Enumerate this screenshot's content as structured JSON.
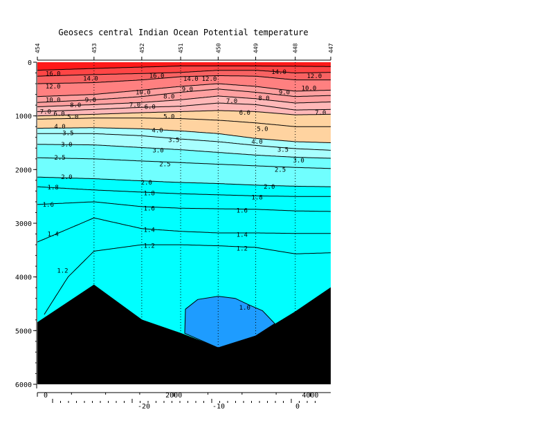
{
  "chart_data": {
    "type": "contour",
    "title": "Geosecs central Indian Ocean Potential temperature",
    "xlim": [
      0,
      4300
    ],
    "ylim": [
      0,
      6000
    ],
    "y_ticks": [
      "0",
      "1000",
      "2000",
      "3000",
      "4000",
      "5000",
      "6000"
    ],
    "x_ticks": [
      "0",
      "2000",
      "4000"
    ],
    "lat_ticks": [
      "-20",
      "-10",
      "0"
    ],
    "stations": [
      {
        "label": "454",
        "x": 0
      },
      {
        "label": "453",
        "x": 830
      },
      {
        "label": "452",
        "x": 1530
      },
      {
        "label": "451",
        "x": 2100
      },
      {
        "label": "450",
        "x": 2650
      },
      {
        "label": "449",
        "x": 3200
      },
      {
        "label": "448",
        "x": 3780
      },
      {
        "label": "447",
        "x": 4300
      }
    ],
    "colors": {
      "above_16": "#ff1a1a",
      "14_16": "#ff4545",
      "12_14": "#f86262",
      "10_12": "#ff8080",
      "8_10": "#ffa0a0",
      "6_8": "#ffb8b8",
      "4_6": "#ffd3a0",
      "3_4": "#a8ffff",
      "2_3": "#70ffff",
      "1_2": "#00ffff",
      "below_1": "#1e9cff",
      "bottom": "#000000"
    },
    "bathymetry": [
      {
        "x": 0,
        "depth": 4850
      },
      {
        "x": 830,
        "depth": 4150
      },
      {
        "x": 1530,
        "depth": 4800
      },
      {
        "x": 2100,
        "depth": 5050
      },
      {
        "x": 2650,
        "depth": 5320
      },
      {
        "x": 3200,
        "depth": 5100
      },
      {
        "x": 3780,
        "depth": 4650
      },
      {
        "x": 4300,
        "depth": 4200
      }
    ],
    "contours": [
      {
        "level": 16.0,
        "points": [
          [
            0,
            150
          ],
          [
            1000,
            110
          ],
          [
            2100,
            70
          ],
          [
            3100,
            70
          ],
          [
            4300,
            80
          ]
        ]
      },
      {
        "level": 14.0,
        "points": [
          [
            0,
            260
          ],
          [
            830,
            230
          ],
          [
            1530,
            210
          ],
          [
            2100,
            190
          ],
          [
            2650,
            150
          ],
          [
            3200,
            150
          ],
          [
            3780,
            200
          ],
          [
            4300,
            190
          ]
        ]
      },
      {
        "level": 12.0,
        "points": [
          [
            0,
            400
          ],
          [
            830,
            380
          ],
          [
            1530,
            330
          ],
          [
            2100,
            270
          ],
          [
            2650,
            250
          ],
          [
            3200,
            260
          ],
          [
            3780,
            330
          ],
          [
            4300,
            330
          ]
        ]
      },
      {
        "level": 10.0,
        "points": [
          [
            0,
            640
          ],
          [
            830,
            600
          ],
          [
            1530,
            520
          ],
          [
            2100,
            450
          ],
          [
            2650,
            400
          ],
          [
            3200,
            450
          ],
          [
            3780,
            540
          ],
          [
            4300,
            520
          ]
        ]
      },
      {
        "level": 9.0,
        "points": [
          [
            0,
            750
          ],
          [
            830,
            700
          ],
          [
            1530,
            640
          ],
          [
            2100,
            560
          ],
          [
            2650,
            500
          ],
          [
            3200,
            560
          ],
          [
            3780,
            640
          ],
          [
            4300,
            620
          ]
        ]
      },
      {
        "level": 8.0,
        "points": [
          [
            0,
            830
          ],
          [
            830,
            790
          ],
          [
            1530,
            750
          ],
          [
            2100,
            700
          ],
          [
            2650,
            630
          ],
          [
            3200,
            680
          ],
          [
            3780,
            760
          ],
          [
            4300,
            740
          ]
        ]
      },
      {
        "level": 7.0,
        "points": [
          [
            0,
            920
          ],
          [
            830,
            880
          ],
          [
            1530,
            840
          ],
          [
            2100,
            820
          ],
          [
            2650,
            760
          ],
          [
            3200,
            790
          ],
          [
            3780,
            890
          ],
          [
            4300,
            880
          ]
        ]
      },
      {
        "level": 6.0,
        "points": [
          [
            0,
            1000
          ],
          [
            830,
            970
          ],
          [
            1530,
            940
          ],
          [
            2100,
            920
          ],
          [
            2650,
            900
          ],
          [
            3200,
            920
          ],
          [
            3780,
            980
          ],
          [
            4300,
            970
          ]
        ]
      },
      {
        "level": 5.0,
        "points": [
          [
            0,
            1060
          ],
          [
            830,
            1040
          ],
          [
            1530,
            1040
          ],
          [
            2100,
            1050
          ],
          [
            2650,
            1080
          ],
          [
            3200,
            1130
          ],
          [
            3780,
            1200
          ],
          [
            4300,
            1200
          ]
        ]
      },
      {
        "level": 4.0,
        "points": [
          [
            0,
            1230
          ],
          [
            830,
            1220
          ],
          [
            1530,
            1240
          ],
          [
            2100,
            1280
          ],
          [
            2650,
            1330
          ],
          [
            3200,
            1420
          ],
          [
            3780,
            1480
          ],
          [
            4300,
            1500
          ]
        ]
      },
      {
        "level": 3.5,
        "points": [
          [
            0,
            1330
          ],
          [
            830,
            1330
          ],
          [
            1530,
            1370
          ],
          [
            2100,
            1430
          ],
          [
            2650,
            1480
          ],
          [
            3200,
            1550
          ],
          [
            3780,
            1610
          ],
          [
            4300,
            1640
          ]
        ]
      },
      {
        "level": 3.0,
        "points": [
          [
            0,
            1530
          ],
          [
            830,
            1540
          ],
          [
            1530,
            1590
          ],
          [
            2100,
            1630
          ],
          [
            2650,
            1680
          ],
          [
            3200,
            1730
          ],
          [
            3780,
            1770
          ],
          [
            4300,
            1790
          ]
        ]
      },
      {
        "level": 2.5,
        "points": [
          [
            0,
            1780
          ],
          [
            830,
            1800
          ],
          [
            1530,
            1840
          ],
          [
            2100,
            1870
          ],
          [
            2650,
            1900
          ],
          [
            3200,
            1930
          ],
          [
            3780,
            1960
          ],
          [
            4300,
            1980
          ]
        ]
      },
      {
        "level": 2.0,
        "points": [
          [
            0,
            2140
          ],
          [
            830,
            2170
          ],
          [
            1530,
            2210
          ],
          [
            2100,
            2240
          ],
          [
            2650,
            2260
          ],
          [
            3200,
            2290
          ],
          [
            3780,
            2310
          ],
          [
            4300,
            2320
          ]
        ]
      },
      {
        "level": 1.8,
        "points": [
          [
            0,
            2320
          ],
          [
            830,
            2380
          ],
          [
            1530,
            2420
          ],
          [
            2100,
            2450
          ],
          [
            2650,
            2470
          ],
          [
            3200,
            2490
          ],
          [
            3780,
            2500
          ],
          [
            4300,
            2500
          ]
        ]
      },
      {
        "level": 1.6,
        "points": [
          [
            0,
            2650
          ],
          [
            830,
            2600
          ],
          [
            1530,
            2690
          ],
          [
            2100,
            2720
          ],
          [
            2650,
            2730
          ],
          [
            3200,
            2740
          ],
          [
            3780,
            2770
          ],
          [
            4300,
            2780
          ]
        ]
      },
      {
        "level": 1.4,
        "points": [
          [
            0,
            3350
          ],
          [
            830,
            2900
          ],
          [
            1530,
            3100
          ],
          [
            2100,
            3150
          ],
          [
            2650,
            3180
          ],
          [
            3200,
            3180
          ],
          [
            3780,
            3190
          ],
          [
            4300,
            3190
          ]
        ]
      },
      {
        "level": 1.2,
        "points": [
          [
            100,
            4700
          ],
          [
            450,
            4000
          ],
          [
            830,
            3520
          ],
          [
            1530,
            3400
          ],
          [
            2100,
            3400
          ],
          [
            2650,
            3420
          ],
          [
            3200,
            3450
          ],
          [
            3780,
            3570
          ],
          [
            4300,
            3550
          ]
        ]
      }
    ],
    "contour_labels": [
      {
        "text": "16.0",
        "x": 230,
        "depth": 210
      },
      {
        "text": "14.0",
        "x": 780,
        "depth": 300
      },
      {
        "text": "16.0",
        "x": 1750,
        "depth": 250
      },
      {
        "text": "14.0",
        "x": 2250,
        "depth": 310
      },
      {
        "text": "12.0",
        "x": 2520,
        "depth": 310
      },
      {
        "text": "14.0",
        "x": 3540,
        "depth": 180
      },
      {
        "text": "12.0",
        "x": 4060,
        "depth": 260
      },
      {
        "text": "12.0",
        "x": 230,
        "depth": 450
      },
      {
        "text": "10.0",
        "x": 1550,
        "depth": 560
      },
      {
        "text": "9.0",
        "x": 2200,
        "depth": 500
      },
      {
        "text": "8.0",
        "x": 1930,
        "depth": 640
      },
      {
        "text": "10.0",
        "x": 3980,
        "depth": 480
      },
      {
        "text": "9.0",
        "x": 3620,
        "depth": 560
      },
      {
        "text": "10.0",
        "x": 230,
        "depth": 700
      },
      {
        "text": "9.0",
        "x": 780,
        "depth": 700
      },
      {
        "text": "8.0",
        "x": 560,
        "depth": 800
      },
      {
        "text": "7.0",
        "x": 1430,
        "depth": 790
      },
      {
        "text": "6.0",
        "x": 1650,
        "depth": 830
      },
      {
        "text": "8.0",
        "x": 3320,
        "depth": 670
      },
      {
        "text": "7.0",
        "x": 2850,
        "depth": 720
      },
      {
        "text": "7.0",
        "x": 120,
        "depth": 920
      },
      {
        "text": "6.0",
        "x": 320,
        "depth": 960
      },
      {
        "text": "5.0",
        "x": 520,
        "depth": 1020
      },
      {
        "text": "5.0",
        "x": 1930,
        "depth": 1010
      },
      {
        "text": "6.0",
        "x": 3040,
        "depth": 940
      },
      {
        "text": "7.0",
        "x": 4150,
        "depth": 940
      },
      {
        "text": "5.0",
        "x": 3300,
        "depth": 1240
      },
      {
        "text": "4.0",
        "x": 330,
        "depth": 1200
      },
      {
        "text": "4.0",
        "x": 1760,
        "depth": 1270
      },
      {
        "text": "4.0",
        "x": 3220,
        "depth": 1480
      },
      {
        "text": "3.5",
        "x": 450,
        "depth": 1320
      },
      {
        "text": "3.5",
        "x": 2000,
        "depth": 1450
      },
      {
        "text": "3.5",
        "x": 3600,
        "depth": 1630
      },
      {
        "text": "3.0",
        "x": 430,
        "depth": 1530
      },
      {
        "text": "3.0",
        "x": 1770,
        "depth": 1640
      },
      {
        "text": "3.0",
        "x": 3830,
        "depth": 1830
      },
      {
        "text": "2.5",
        "x": 330,
        "depth": 1780
      },
      {
        "text": "2.5",
        "x": 1870,
        "depth": 1900
      },
      {
        "text": "2.5",
        "x": 3560,
        "depth": 2000
      },
      {
        "text": "2.0",
        "x": 430,
        "depth": 2140
      },
      {
        "text": "2.0",
        "x": 1600,
        "depth": 2240
      },
      {
        "text": "2.0",
        "x": 3400,
        "depth": 2320
      },
      {
        "text": "1.8",
        "x": 230,
        "depth": 2330
      },
      {
        "text": "1.8",
        "x": 1640,
        "depth": 2440
      },
      {
        "text": "1.8",
        "x": 3220,
        "depth": 2520
      },
      {
        "text": "1.6",
        "x": 160,
        "depth": 2650
      },
      {
        "text": "1.6",
        "x": 1640,
        "depth": 2720
      },
      {
        "text": "1.6",
        "x": 3000,
        "depth": 2760
      },
      {
        "text": "1.4",
        "x": 230,
        "depth": 3200
      },
      {
        "text": "1.4",
        "x": 1640,
        "depth": 3120
      },
      {
        "text": "1.4",
        "x": 3000,
        "depth": 3210
      },
      {
        "text": "1.2",
        "x": 370,
        "depth": 3880
      },
      {
        "text": "1.2",
        "x": 1640,
        "depth": 3420
      },
      {
        "text": "1.2",
        "x": 3000,
        "depth": 3470
      },
      {
        "text": "1.0",
        "x": 3040,
        "depth": 4570
      }
    ],
    "cold_pool": {
      "level": 1.0,
      "points": [
        [
          2160,
          5050
        ],
        [
          2170,
          4600
        ],
        [
          2350,
          4420
        ],
        [
          2650,
          4360
        ],
        [
          2900,
          4400
        ],
        [
          3100,
          4520
        ],
        [
          3300,
          4630
        ],
        [
          3480,
          4870
        ],
        [
          3200,
          5100
        ],
        [
          2650,
          5320
        ]
      ]
    }
  }
}
